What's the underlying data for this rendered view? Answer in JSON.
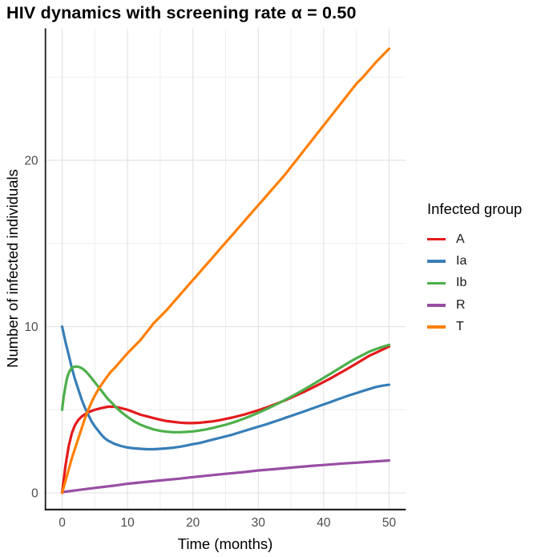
{
  "chart_data": {
    "type": "line",
    "title": "HIV dynamics with screening rate α = 0.50",
    "xlabel": "Time (months)",
    "ylabel": "Number of infected individuals",
    "legend_title": "Infected group",
    "xlim": [
      -2.55,
      52.55
    ],
    "ylim": [
      -1.0,
      27.93
    ],
    "x_ticks": [
      0,
      10,
      20,
      30,
      40,
      50
    ],
    "y_ticks": [
      0,
      10,
      20
    ],
    "x_minor": [
      5,
      15,
      25,
      35,
      45
    ],
    "y_minor": [
      5,
      15,
      25
    ],
    "grid": "on",
    "legend_position": "right",
    "colors": {
      "major_grid": "#e3e3e3",
      "minor_grid": "#efefef",
      "axis_line": "#1a1a1a",
      "tick_text": "#4d4d4d"
    },
    "series": [
      {
        "name": "A",
        "color": "#E41A1C",
        "points": [
          [
            0,
            0
          ],
          [
            0.5,
            1.6
          ],
          [
            1,
            2.8
          ],
          [
            1.5,
            3.6
          ],
          [
            2,
            4.1
          ],
          [
            2.5,
            4.4
          ],
          [
            3,
            4.6
          ],
          [
            4,
            4.85
          ],
          [
            5,
            5.0
          ],
          [
            6,
            5.1
          ],
          [
            7,
            5.18
          ],
          [
            8,
            5.18
          ],
          [
            9,
            5.1
          ],
          [
            10,
            5.0
          ],
          [
            11,
            4.85
          ],
          [
            12,
            4.7
          ],
          [
            13,
            4.6
          ],
          [
            14,
            4.5
          ],
          [
            15,
            4.4
          ],
          [
            16,
            4.32
          ],
          [
            17,
            4.27
          ],
          [
            18,
            4.23
          ],
          [
            19,
            4.2
          ],
          [
            20,
            4.2
          ],
          [
            21,
            4.22
          ],
          [
            22,
            4.26
          ],
          [
            23,
            4.3
          ],
          [
            24,
            4.37
          ],
          [
            25,
            4.45
          ],
          [
            26,
            4.53
          ],
          [
            27,
            4.63
          ],
          [
            28,
            4.73
          ],
          [
            29,
            4.85
          ],
          [
            30,
            4.97
          ],
          [
            31,
            5.1
          ],
          [
            32,
            5.25
          ],
          [
            33,
            5.4
          ],
          [
            34,
            5.55
          ],
          [
            35,
            5.72
          ],
          [
            36,
            5.9
          ],
          [
            37,
            6.08
          ],
          [
            38,
            6.27
          ],
          [
            39,
            6.47
          ],
          [
            40,
            6.67
          ],
          [
            41,
            6.88
          ],
          [
            42,
            7.1
          ],
          [
            43,
            7.32
          ],
          [
            44,
            7.55
          ],
          [
            45,
            7.78
          ],
          [
            46,
            8.02
          ],
          [
            47,
            8.25
          ],
          [
            48,
            8.43
          ],
          [
            49,
            8.62
          ],
          [
            50,
            8.8
          ]
        ]
      },
      {
        "name": "Ia",
        "color": "#377EB8",
        "points": [
          [
            0,
            10
          ],
          [
            0.5,
            9.1
          ],
          [
            1,
            8.3
          ],
          [
            1.5,
            7.5
          ],
          [
            2,
            6.8
          ],
          [
            2.5,
            6.2
          ],
          [
            3,
            5.6
          ],
          [
            3.5,
            5.1
          ],
          [
            4,
            4.7
          ],
          [
            4.5,
            4.3
          ],
          [
            5,
            4.0
          ],
          [
            5.5,
            3.75
          ],
          [
            6,
            3.5
          ],
          [
            6.5,
            3.3
          ],
          [
            7,
            3.15
          ],
          [
            7.5,
            3.05
          ],
          [
            8,
            2.95
          ],
          [
            9,
            2.82
          ],
          [
            10,
            2.73
          ],
          [
            11,
            2.68
          ],
          [
            12,
            2.65
          ],
          [
            13,
            2.63
          ],
          [
            14,
            2.63
          ],
          [
            15,
            2.65
          ],
          [
            16,
            2.68
          ],
          [
            17,
            2.72
          ],
          [
            18,
            2.78
          ],
          [
            19,
            2.85
          ],
          [
            20,
            2.93
          ],
          [
            21,
            3.0
          ],
          [
            22,
            3.1
          ],
          [
            23,
            3.2
          ],
          [
            24,
            3.3
          ],
          [
            25,
            3.4
          ],
          [
            26,
            3.5
          ],
          [
            27,
            3.62
          ],
          [
            28,
            3.74
          ],
          [
            29,
            3.86
          ],
          [
            30,
            3.98
          ],
          [
            31,
            4.1
          ],
          [
            32,
            4.23
          ],
          [
            33,
            4.36
          ],
          [
            34,
            4.5
          ],
          [
            35,
            4.63
          ],
          [
            36,
            4.77
          ],
          [
            37,
            4.9
          ],
          [
            38,
            5.04
          ],
          [
            39,
            5.18
          ],
          [
            40,
            5.32
          ],
          [
            41,
            5.46
          ],
          [
            42,
            5.6
          ],
          [
            43,
            5.74
          ],
          [
            44,
            5.88
          ],
          [
            45,
            6.0
          ],
          [
            46,
            6.13
          ],
          [
            47,
            6.25
          ],
          [
            48,
            6.37
          ],
          [
            49,
            6.45
          ],
          [
            50,
            6.5
          ]
        ]
      },
      {
        "name": "Ib",
        "color": "#4DAF4A",
        "points": [
          [
            0,
            5.0
          ],
          [
            0.25,
            5.8
          ],
          [
            0.5,
            6.4
          ],
          [
            0.75,
            6.9
          ],
          [
            1,
            7.2
          ],
          [
            1.25,
            7.4
          ],
          [
            1.5,
            7.52
          ],
          [
            2,
            7.6
          ],
          [
            2.5,
            7.58
          ],
          [
            3,
            7.5
          ],
          [
            3.5,
            7.35
          ],
          [
            4,
            7.15
          ],
          [
            4.5,
            6.9
          ],
          [
            5,
            6.65
          ],
          [
            5.5,
            6.4
          ],
          [
            6,
            6.15
          ],
          [
            6.5,
            5.9
          ],
          [
            7,
            5.65
          ],
          [
            7.5,
            5.45
          ],
          [
            8,
            5.25
          ],
          [
            8.5,
            5.05
          ],
          [
            9,
            4.88
          ],
          [
            9.5,
            4.72
          ],
          [
            10,
            4.57
          ],
          [
            11,
            4.3
          ],
          [
            12,
            4.1
          ],
          [
            13,
            3.95
          ],
          [
            14,
            3.82
          ],
          [
            15,
            3.73
          ],
          [
            16,
            3.68
          ],
          [
            17,
            3.65
          ],
          [
            18,
            3.65
          ],
          [
            19,
            3.67
          ],
          [
            20,
            3.7
          ],
          [
            21,
            3.75
          ],
          [
            22,
            3.82
          ],
          [
            23,
            3.9
          ],
          [
            24,
            4.0
          ],
          [
            25,
            4.1
          ],
          [
            26,
            4.22
          ],
          [
            27,
            4.35
          ],
          [
            28,
            4.5
          ],
          [
            29,
            4.65
          ],
          [
            30,
            4.82
          ],
          [
            31,
            5.0
          ],
          [
            32,
            5.18
          ],
          [
            33,
            5.37
          ],
          [
            34,
            5.57
          ],
          [
            35,
            5.78
          ],
          [
            36,
            6.0
          ],
          [
            37,
            6.22
          ],
          [
            38,
            6.45
          ],
          [
            39,
            6.68
          ],
          [
            40,
            6.92
          ],
          [
            41,
            7.16
          ],
          [
            42,
            7.4
          ],
          [
            43,
            7.64
          ],
          [
            44,
            7.88
          ],
          [
            45,
            8.1
          ],
          [
            46,
            8.3
          ],
          [
            47,
            8.5
          ],
          [
            48,
            8.65
          ],
          [
            49,
            8.78
          ],
          [
            50,
            8.9
          ]
        ]
      },
      {
        "name": "R",
        "color": "#984EA3",
        "points": [
          [
            0,
            0.05
          ],
          [
            2,
            0.15
          ],
          [
            5,
            0.3
          ],
          [
            8,
            0.44
          ],
          [
            10,
            0.55
          ],
          [
            13,
            0.67
          ],
          [
            15,
            0.75
          ],
          [
            18,
            0.86
          ],
          [
            20,
            0.95
          ],
          [
            23,
            1.07
          ],
          [
            25,
            1.15
          ],
          [
            28,
            1.26
          ],
          [
            30,
            1.35
          ],
          [
            33,
            1.45
          ],
          [
            35,
            1.52
          ],
          [
            38,
            1.62
          ],
          [
            40,
            1.68
          ],
          [
            43,
            1.77
          ],
          [
            45,
            1.82
          ],
          [
            48,
            1.9
          ],
          [
            50,
            1.95
          ]
        ]
      },
      {
        "name": "T",
        "color": "#FF7F00",
        "points": [
          [
            0,
            0
          ],
          [
            0.5,
            0.7
          ],
          [
            1,
            1.4
          ],
          [
            1.5,
            2.1
          ],
          [
            2,
            2.7
          ],
          [
            2.5,
            3.3
          ],
          [
            3,
            3.9
          ],
          [
            3.5,
            4.5
          ],
          [
            4,
            5.0
          ],
          [
            4.5,
            5.45
          ],
          [
            5,
            5.85
          ],
          [
            5.5,
            6.2
          ],
          [
            6,
            6.5
          ],
          [
            6.5,
            6.78
          ],
          [
            7,
            7.05
          ],
          [
            7.5,
            7.3
          ],
          [
            8,
            7.5
          ],
          [
            9,
            7.95
          ],
          [
            10,
            8.4
          ],
          [
            11,
            8.8
          ],
          [
            12,
            9.2
          ],
          [
            13,
            9.7
          ],
          [
            14,
            10.2
          ],
          [
            15,
            10.6
          ],
          [
            16,
            11.0
          ],
          [
            17,
            11.45
          ],
          [
            18,
            11.9
          ],
          [
            19,
            12.35
          ],
          [
            20,
            12.8
          ],
          [
            21,
            13.25
          ],
          [
            22,
            13.7
          ],
          [
            23,
            14.15
          ],
          [
            24,
            14.6
          ],
          [
            25,
            15.05
          ],
          [
            26,
            15.5
          ],
          [
            27,
            15.95
          ],
          [
            28,
            16.4
          ],
          [
            29,
            16.85
          ],
          [
            30,
            17.3
          ],
          [
            31,
            17.75
          ],
          [
            32,
            18.2
          ],
          [
            33,
            18.65
          ],
          [
            34,
            19.1
          ],
          [
            35,
            19.6
          ],
          [
            36,
            20.1
          ],
          [
            37,
            20.6
          ],
          [
            38,
            21.1
          ],
          [
            39,
            21.6
          ],
          [
            40,
            22.1
          ],
          [
            41,
            22.6
          ],
          [
            42,
            23.1
          ],
          [
            43,
            23.6
          ],
          [
            44,
            24.1
          ],
          [
            45,
            24.6
          ],
          [
            46,
            25.0
          ],
          [
            47,
            25.45
          ],
          [
            48,
            25.9
          ],
          [
            49,
            26.3
          ],
          [
            50,
            26.7
          ]
        ]
      }
    ]
  }
}
